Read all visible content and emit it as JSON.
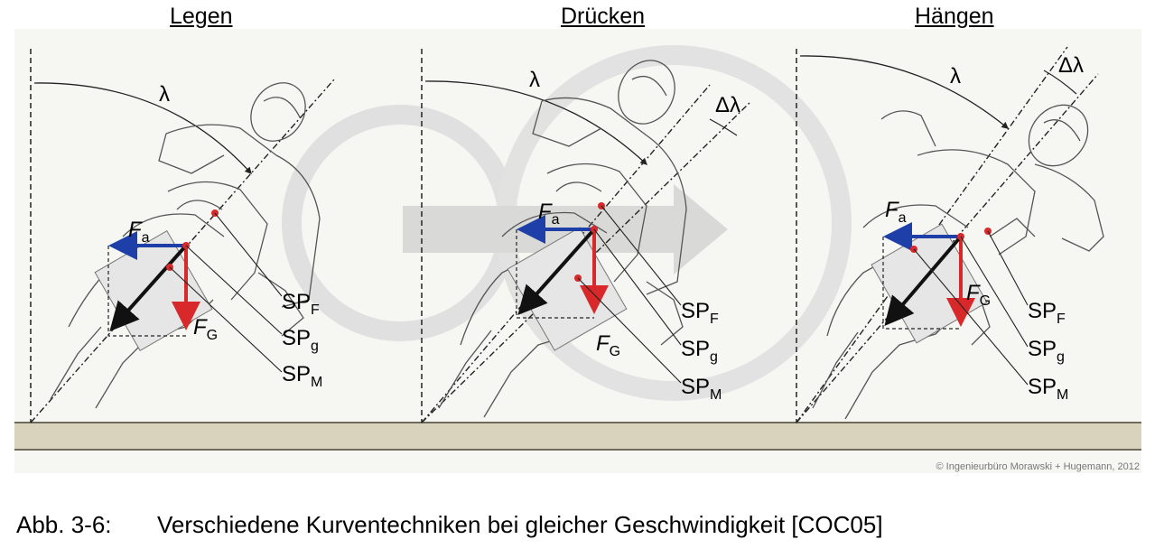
{
  "panels": [
    {
      "title": "Legen",
      "lambda": "λ",
      "dlambda": ""
    },
    {
      "title": "Drücken",
      "lambda": "λ",
      "dlambda": "Δλ"
    },
    {
      "title": "Hängen",
      "lambda": "λ",
      "dlambda": "Δλ"
    }
  ],
  "labels": {
    "fa_main": "F",
    "fa_sub": "a",
    "fg_main": "F",
    "fg_sub": "G",
    "spf_main": "SP",
    "spf_sub": "F",
    "spg_main": "SP",
    "spg_sub": "g",
    "spm_main": "SP",
    "spm_sub": "M"
  },
  "copyright": "© Ingenieurbüro Morawski + Hugemann, 2012",
  "caption": {
    "number": "Abb. 3-6:",
    "text": "Verschiedene Kurventechniken bei gleicher Geschwindigkeit [COC05]"
  },
  "colors": {
    "force_a": "#1f3fa8",
    "force_g": "#d8282a",
    "ground": "#d9d3bd",
    "panel_bg": "#f6f6f3",
    "watermark": "#dcdcdc"
  }
}
